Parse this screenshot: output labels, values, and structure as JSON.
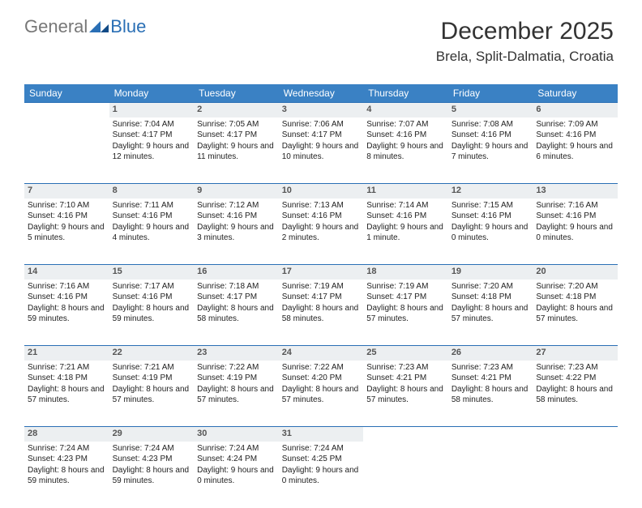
{
  "logo": {
    "text1": "General",
    "text2": "Blue"
  },
  "title": "December 2025",
  "location": "Brela, Split-Dalmatia, Croatia",
  "colors": {
    "header_bg": "#3a81c4",
    "header_text": "#ffffff",
    "daynum_bg": "#eceff1",
    "border": "#2a6fb5",
    "text": "#333333"
  },
  "weekdays": [
    "Sunday",
    "Monday",
    "Tuesday",
    "Wednesday",
    "Thursday",
    "Friday",
    "Saturday"
  ],
  "weeks": [
    [
      null,
      {
        "n": "1",
        "sr": "7:04 AM",
        "ss": "4:17 PM",
        "dl": "9 hours and 12 minutes."
      },
      {
        "n": "2",
        "sr": "7:05 AM",
        "ss": "4:17 PM",
        "dl": "9 hours and 11 minutes."
      },
      {
        "n": "3",
        "sr": "7:06 AM",
        "ss": "4:17 PM",
        "dl": "9 hours and 10 minutes."
      },
      {
        "n": "4",
        "sr": "7:07 AM",
        "ss": "4:16 PM",
        "dl": "9 hours and 8 minutes."
      },
      {
        "n": "5",
        "sr": "7:08 AM",
        "ss": "4:16 PM",
        "dl": "9 hours and 7 minutes."
      },
      {
        "n": "6",
        "sr": "7:09 AM",
        "ss": "4:16 PM",
        "dl": "9 hours and 6 minutes."
      }
    ],
    [
      {
        "n": "7",
        "sr": "7:10 AM",
        "ss": "4:16 PM",
        "dl": "9 hours and 5 minutes."
      },
      {
        "n": "8",
        "sr": "7:11 AM",
        "ss": "4:16 PM",
        "dl": "9 hours and 4 minutes."
      },
      {
        "n": "9",
        "sr": "7:12 AM",
        "ss": "4:16 PM",
        "dl": "9 hours and 3 minutes."
      },
      {
        "n": "10",
        "sr": "7:13 AM",
        "ss": "4:16 PM",
        "dl": "9 hours and 2 minutes."
      },
      {
        "n": "11",
        "sr": "7:14 AM",
        "ss": "4:16 PM",
        "dl": "9 hours and 1 minute."
      },
      {
        "n": "12",
        "sr": "7:15 AM",
        "ss": "4:16 PM",
        "dl": "9 hours and 0 minutes."
      },
      {
        "n": "13",
        "sr": "7:16 AM",
        "ss": "4:16 PM",
        "dl": "9 hours and 0 minutes."
      }
    ],
    [
      {
        "n": "14",
        "sr": "7:16 AM",
        "ss": "4:16 PM",
        "dl": "8 hours and 59 minutes."
      },
      {
        "n": "15",
        "sr": "7:17 AM",
        "ss": "4:16 PM",
        "dl": "8 hours and 59 minutes."
      },
      {
        "n": "16",
        "sr": "7:18 AM",
        "ss": "4:17 PM",
        "dl": "8 hours and 58 minutes."
      },
      {
        "n": "17",
        "sr": "7:19 AM",
        "ss": "4:17 PM",
        "dl": "8 hours and 58 minutes."
      },
      {
        "n": "18",
        "sr": "7:19 AM",
        "ss": "4:17 PM",
        "dl": "8 hours and 57 minutes."
      },
      {
        "n": "19",
        "sr": "7:20 AM",
        "ss": "4:18 PM",
        "dl": "8 hours and 57 minutes."
      },
      {
        "n": "20",
        "sr": "7:20 AM",
        "ss": "4:18 PM",
        "dl": "8 hours and 57 minutes."
      }
    ],
    [
      {
        "n": "21",
        "sr": "7:21 AM",
        "ss": "4:18 PM",
        "dl": "8 hours and 57 minutes."
      },
      {
        "n": "22",
        "sr": "7:21 AM",
        "ss": "4:19 PM",
        "dl": "8 hours and 57 minutes."
      },
      {
        "n": "23",
        "sr": "7:22 AM",
        "ss": "4:19 PM",
        "dl": "8 hours and 57 minutes."
      },
      {
        "n": "24",
        "sr": "7:22 AM",
        "ss": "4:20 PM",
        "dl": "8 hours and 57 minutes."
      },
      {
        "n": "25",
        "sr": "7:23 AM",
        "ss": "4:21 PM",
        "dl": "8 hours and 57 minutes."
      },
      {
        "n": "26",
        "sr": "7:23 AM",
        "ss": "4:21 PM",
        "dl": "8 hours and 58 minutes."
      },
      {
        "n": "27",
        "sr": "7:23 AM",
        "ss": "4:22 PM",
        "dl": "8 hours and 58 minutes."
      }
    ],
    [
      {
        "n": "28",
        "sr": "7:24 AM",
        "ss": "4:23 PM",
        "dl": "8 hours and 59 minutes."
      },
      {
        "n": "29",
        "sr": "7:24 AM",
        "ss": "4:23 PM",
        "dl": "8 hours and 59 minutes."
      },
      {
        "n": "30",
        "sr": "7:24 AM",
        "ss": "4:24 PM",
        "dl": "9 hours and 0 minutes."
      },
      {
        "n": "31",
        "sr": "7:24 AM",
        "ss": "4:25 PM",
        "dl": "9 hours and 0 minutes."
      },
      null,
      null,
      null
    ]
  ],
  "labels": {
    "sunrise": "Sunrise:",
    "sunset": "Sunset:",
    "daylight": "Daylight:"
  }
}
